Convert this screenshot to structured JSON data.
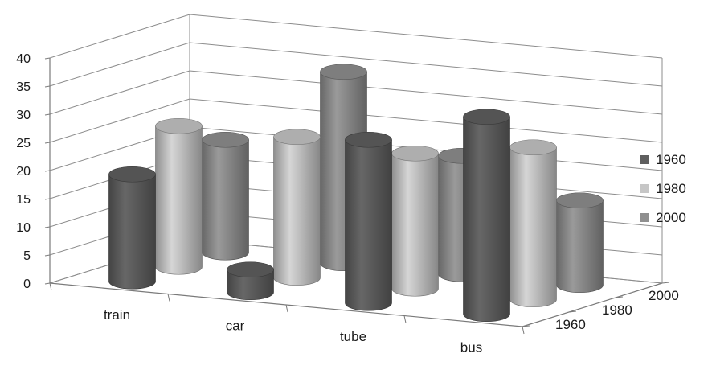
{
  "chart_data": {
    "type": "bar",
    "style": "3d-cylinder",
    "categories": [
      "train",
      "car",
      "tube",
      "bus"
    ],
    "series": [
      {
        "name": "1960",
        "values": [
          19,
          4,
          29,
          35
        ],
        "color": "#5f5f5f"
      },
      {
        "name": "1980",
        "values": [
          25,
          25,
          24,
          27
        ],
        "color": "#c6c6c6"
      },
      {
        "name": "2000",
        "values": [
          20,
          34,
          21,
          15
        ],
        "color": "#8f8f8f"
      }
    ],
    "depth_labels": [
      "1960",
      "1980",
      "2000"
    ],
    "y_ticks": [
      "0",
      "5",
      "10",
      "15",
      "20",
      "25",
      "30",
      "35",
      "40"
    ],
    "ylim": [
      0,
      40
    ],
    "grid": true,
    "legend_position": "right",
    "title": "",
    "xlabel": "",
    "ylabel": ""
  }
}
